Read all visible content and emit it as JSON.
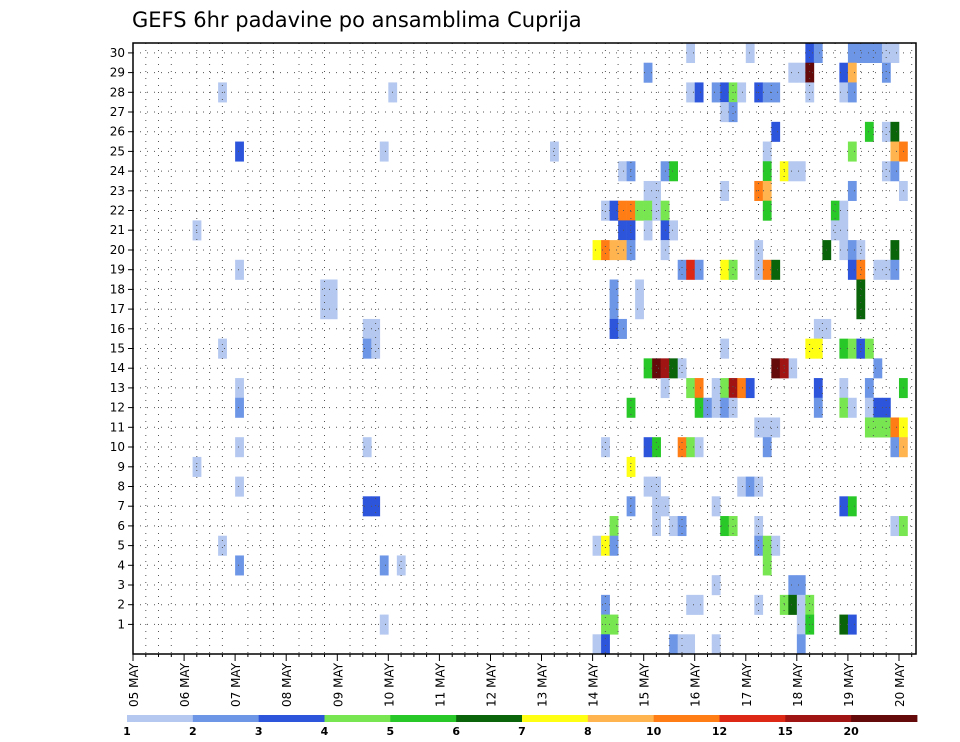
{
  "chart_data": {
    "type": "heatmap",
    "title": "GEFS 6hr padavine po ansamblima Cuprija",
    "xlabel": "",
    "ylabel": "",
    "x_tick_labels": [
      "05 MAY",
      "06 MAY",
      "07 MAY",
      "08 MAY",
      "09 MAY",
      "10 MAY",
      "11 MAY",
      "12 MAY",
      "13 MAY",
      "14 MAY",
      "15 MAY",
      "16 MAY",
      "17 MAY",
      "18 MAY",
      "19 MAY",
      "20 MAY"
    ],
    "y_tick_labels": [
      "1",
      "2",
      "3",
      "4",
      "5",
      "6",
      "7",
      "8",
      "9",
      "10",
      "11",
      "12",
      "13",
      "14",
      "15",
      "16",
      "17",
      "18",
      "19",
      "20",
      "21",
      "22",
      "23",
      "24",
      "25",
      "26",
      "27",
      "28",
      "29",
      "30"
    ],
    "ylim": [
      0.5,
      30.5
    ],
    "grid": true,
    "color_levels": [
      1,
      2,
      3,
      4,
      5,
      6,
      7,
      8,
      10,
      12,
      15,
      20
    ],
    "colors": [
      "#b4c8f0",
      "#6e96e6",
      "#2d55dc",
      "#78e650",
      "#28c828",
      "#0a640a",
      "#ffff14",
      "#ffb450",
      "#ff7d14",
      "#dc2814",
      "#a01414",
      "#640a0a"
    ],
    "cells": [
      [
        30,
        0,
        65
      ],
      [
        30,
        0,
        72
      ],
      [
        30,
        2,
        79
      ],
      [
        30,
        1,
        80
      ],
      [
        30,
        1,
        84
      ],
      [
        30,
        1,
        85
      ],
      [
        30,
        1,
        86
      ],
      [
        30,
        1,
        87
      ],
      [
        30,
        0,
        88
      ],
      [
        30,
        0,
        89
      ],
      [
        29,
        1,
        60
      ],
      [
        29,
        0,
        77
      ],
      [
        29,
        0,
        78
      ],
      [
        29,
        11,
        79
      ],
      [
        29,
        2,
        83
      ],
      [
        29,
        7,
        84
      ],
      [
        29,
        1,
        88
      ],
      [
        28,
        0,
        10
      ],
      [
        28,
        0,
        30
      ],
      [
        28,
        0,
        65
      ],
      [
        28,
        2,
        66
      ],
      [
        28,
        1,
        68
      ],
      [
        28,
        2,
        69
      ],
      [
        28,
        3,
        70
      ],
      [
        28,
        0,
        71
      ],
      [
        28,
        2,
        73
      ],
      [
        28,
        1,
        74
      ],
      [
        28,
        1,
        75
      ],
      [
        28,
        0,
        79
      ],
      [
        28,
        0,
        83
      ],
      [
        28,
        1,
        84
      ],
      [
        27,
        0,
        69
      ],
      [
        27,
        1,
        70
      ],
      [
        26,
        2,
        75
      ],
      [
        26,
        4,
        86
      ],
      [
        26,
        0,
        88
      ],
      [
        26,
        5,
        89
      ],
      [
        25,
        2,
        12
      ],
      [
        25,
        0,
        29
      ],
      [
        25,
        0,
        49
      ],
      [
        25,
        0,
        74
      ],
      [
        25,
        3,
        84
      ],
      [
        25,
        7,
        89
      ],
      [
        25,
        8,
        90
      ],
      [
        24,
        0,
        57
      ],
      [
        24,
        1,
        58
      ],
      [
        24,
        1,
        62
      ],
      [
        24,
        4,
        63
      ],
      [
        24,
        4,
        74
      ],
      [
        24,
        6,
        76
      ],
      [
        24,
        0,
        77
      ],
      [
        24,
        0,
        78
      ],
      [
        24,
        0,
        88
      ],
      [
        24,
        1,
        89
      ],
      [
        23,
        0,
        60
      ],
      [
        23,
        0,
        61
      ],
      [
        23,
        0,
        69
      ],
      [
        23,
        8,
        73
      ],
      [
        23,
        7,
        74
      ],
      [
        23,
        1,
        84
      ],
      [
        23,
        0,
        90
      ],
      [
        22,
        0,
        55
      ],
      [
        22,
        2,
        56
      ],
      [
        22,
        8,
        57
      ],
      [
        22,
        8,
        58
      ],
      [
        22,
        3,
        59
      ],
      [
        22,
        3,
        60
      ],
      [
        22,
        0,
        61
      ],
      [
        22,
        3,
        62
      ],
      [
        22,
        4,
        74
      ],
      [
        22,
        4,
        82
      ],
      [
        22,
        0,
        83
      ],
      [
        21,
        0,
        7
      ],
      [
        21,
        2,
        57
      ],
      [
        21,
        2,
        58
      ],
      [
        21,
        0,
        60
      ],
      [
        21,
        2,
        62
      ],
      [
        21,
        0,
        63
      ],
      [
        21,
        0,
        82
      ],
      [
        21,
        0,
        83
      ],
      [
        20,
        6,
        54
      ],
      [
        20,
        8,
        55
      ],
      [
        20,
        7,
        56
      ],
      [
        20,
        7,
        57
      ],
      [
        20,
        1,
        58
      ],
      [
        20,
        0,
        62
      ],
      [
        20,
        0,
        73
      ],
      [
        20,
        5,
        81
      ],
      [
        20,
        0,
        83
      ],
      [
        20,
        1,
        84
      ],
      [
        20,
        0,
        85
      ],
      [
        20,
        5,
        89
      ],
      [
        19,
        0,
        12
      ],
      [
        19,
        1,
        64
      ],
      [
        19,
        9,
        65
      ],
      [
        19,
        1,
        66
      ],
      [
        19,
        6,
        69
      ],
      [
        19,
        3,
        70
      ],
      [
        19,
        0,
        73
      ],
      [
        19,
        8,
        74
      ],
      [
        19,
        5,
        75
      ],
      [
        19,
        2,
        84
      ],
      [
        19,
        8,
        85
      ],
      [
        19,
        0,
        87
      ],
      [
        19,
        0,
        88
      ],
      [
        19,
        1,
        89
      ],
      [
        18,
        0,
        22
      ],
      [
        18,
        0,
        23
      ],
      [
        18,
        1,
        56
      ],
      [
        18,
        0,
        59
      ],
      [
        18,
        5,
        85
      ],
      [
        17,
        0,
        22
      ],
      [
        17,
        0,
        23
      ],
      [
        17,
        1,
        56
      ],
      [
        17,
        0,
        59
      ],
      [
        17,
        5,
        85
      ],
      [
        16,
        0,
        27
      ],
      [
        16,
        0,
        28
      ],
      [
        16,
        2,
        56
      ],
      [
        16,
        1,
        57
      ],
      [
        16,
        0,
        80
      ],
      [
        16,
        0,
        81
      ],
      [
        15,
        0,
        10
      ],
      [
        15,
        1,
        27
      ],
      [
        15,
        0,
        28
      ],
      [
        15,
        0,
        69
      ],
      [
        15,
        6,
        79
      ],
      [
        15,
        6,
        80
      ],
      [
        15,
        4,
        83
      ],
      [
        15,
        3,
        84
      ],
      [
        15,
        2,
        85
      ],
      [
        15,
        3,
        86
      ],
      [
        14,
        4,
        60
      ],
      [
        14,
        11,
        61
      ],
      [
        14,
        10,
        62
      ],
      [
        14,
        5,
        63
      ],
      [
        14,
        0,
        64
      ],
      [
        14,
        0,
        77
      ],
      [
        14,
        11,
        75
      ],
      [
        14,
        10,
        76
      ],
      [
        14,
        1,
        87
      ],
      [
        13,
        0,
        12
      ],
      [
        13,
        0,
        62
      ],
      [
        13,
        3,
        65
      ],
      [
        13,
        8,
        66
      ],
      [
        13,
        0,
        68
      ],
      [
        13,
        3,
        69
      ],
      [
        13,
        10,
        70
      ],
      [
        13,
        8,
        71
      ],
      [
        13,
        2,
        72
      ],
      [
        13,
        2,
        80
      ],
      [
        13,
        0,
        83
      ],
      [
        13,
        1,
        86
      ],
      [
        13,
        4,
        90
      ],
      [
        12,
        1,
        12
      ],
      [
        12,
        4,
        58
      ],
      [
        12,
        4,
        66
      ],
      [
        12,
        1,
        67
      ],
      [
        12,
        0,
        68
      ],
      [
        12,
        1,
        69
      ],
      [
        12,
        0,
        70
      ],
      [
        12,
        1,
        80
      ],
      [
        12,
        3,
        83
      ],
      [
        12,
        0,
        84
      ],
      [
        12,
        0,
        86
      ],
      [
        12,
        2,
        87
      ],
      [
        12,
        2,
        88
      ],
      [
        11,
        0,
        73
      ],
      [
        11,
        0,
        74
      ],
      [
        11,
        0,
        75
      ],
      [
        11,
        3,
        86
      ],
      [
        11,
        3,
        87
      ],
      [
        11,
        3,
        88
      ],
      [
        11,
        8,
        89
      ],
      [
        11,
        6,
        90
      ],
      [
        10,
        0,
        12
      ],
      [
        10,
        0,
        27
      ],
      [
        10,
        0,
        55
      ],
      [
        10,
        2,
        60
      ],
      [
        10,
        4,
        61
      ],
      [
        10,
        8,
        64
      ],
      [
        10,
        3,
        65
      ],
      [
        10,
        0,
        66
      ],
      [
        10,
        1,
        74
      ],
      [
        10,
        1,
        89
      ],
      [
        10,
        7,
        90
      ],
      [
        9,
        0,
        7
      ],
      [
        9,
        6,
        58
      ],
      [
        8,
        0,
        12
      ],
      [
        8,
        0,
        60
      ],
      [
        8,
        0,
        61
      ],
      [
        8,
        0,
        71
      ],
      [
        8,
        1,
        72
      ],
      [
        8,
        0,
        73
      ],
      [
        7,
        2,
        27
      ],
      [
        7,
        2,
        28
      ],
      [
        7,
        1,
        58
      ],
      [
        7,
        0,
        61
      ],
      [
        7,
        0,
        62
      ],
      [
        7,
        0,
        68
      ],
      [
        7,
        2,
        83
      ],
      [
        7,
        4,
        84
      ],
      [
        6,
        3,
        56
      ],
      [
        6,
        0,
        61
      ],
      [
        6,
        0,
        63
      ],
      [
        6,
        1,
        64
      ],
      [
        6,
        4,
        69
      ],
      [
        6,
        3,
        70
      ],
      [
        6,
        0,
        73
      ],
      [
        6,
        0,
        89
      ],
      [
        6,
        3,
        90
      ],
      [
        5,
        0,
        10
      ],
      [
        5,
        0,
        54
      ],
      [
        5,
        6,
        55
      ],
      [
        5,
        1,
        56
      ],
      [
        5,
        1,
        73
      ],
      [
        5,
        3,
        74
      ],
      [
        5,
        0,
        75
      ],
      [
        4,
        1,
        12
      ],
      [
        4,
        1,
        29
      ],
      [
        4,
        0,
        31
      ],
      [
        4,
        3,
        74
      ],
      [
        3,
        1,
        77
      ],
      [
        3,
        1,
        78
      ],
      [
        3,
        0,
        68
      ],
      [
        2,
        1,
        55
      ],
      [
        2,
        0,
        65
      ],
      [
        2,
        0,
        66
      ],
      [
        2,
        0,
        73
      ],
      [
        2,
        3,
        76
      ],
      [
        2,
        5,
        77
      ],
      [
        2,
        0,
        78
      ],
      [
        2,
        3,
        79
      ],
      [
        1,
        0,
        29
      ],
      [
        1,
        3,
        55
      ],
      [
        1,
        3,
        56
      ],
      [
        1,
        0,
        78
      ],
      [
        1,
        4,
        79
      ],
      [
        1,
        5,
        83
      ],
      [
        1,
        2,
        84
      ],
      [
        0,
        0,
        54
      ],
      [
        0,
        2,
        55
      ],
      [
        0,
        1,
        63
      ],
      [
        0,
        0,
        64
      ],
      [
        0,
        0,
        65
      ],
      [
        0,
        0,
        68
      ],
      [
        0,
        1,
        78
      ]
    ]
  }
}
